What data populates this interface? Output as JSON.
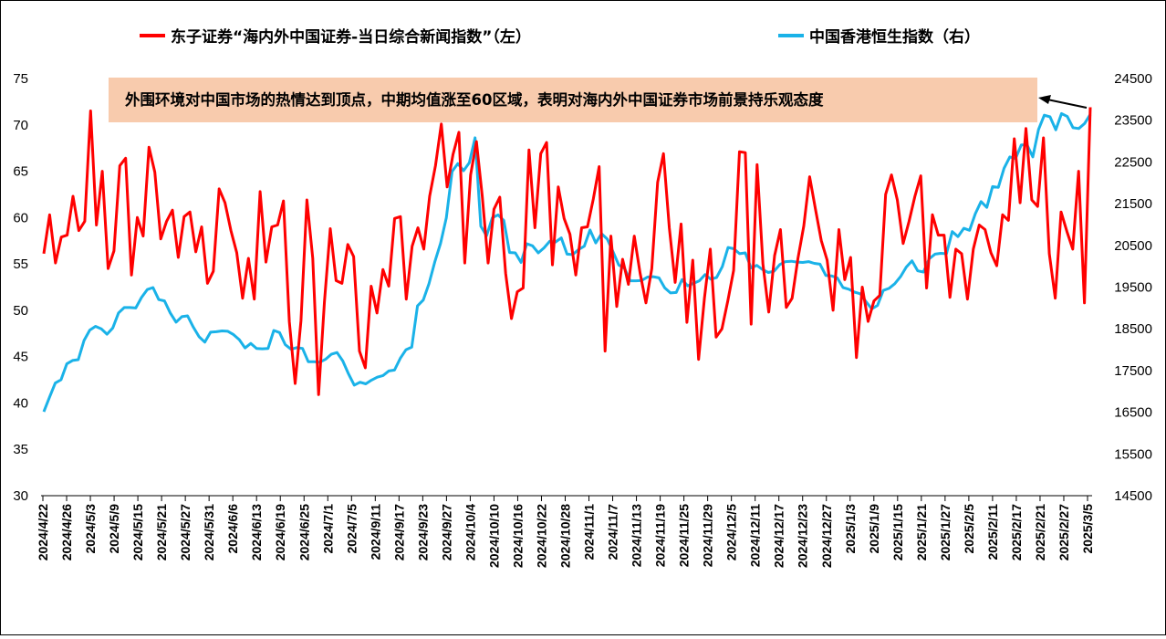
{
  "chart_data": {
    "type": "line",
    "title": "",
    "x_labels": [
      "2024/4/22",
      "2024/4/26",
      "2024/5/3",
      "2024/5/9",
      "2024/5/15",
      "2024/5/21",
      "2024/5/27",
      "2024/5/31",
      "2024/6/6",
      "2024/6/13",
      "2024/6/19",
      "2024/6/25",
      "2024/7/1",
      "2024/7/5",
      "2024/9/11",
      "2024/9/17",
      "2024/9/23",
      "2024/9/27",
      "2024/10/4",
      "2024/10/10",
      "2024/10/16",
      "2024/10/22",
      "2024/10/28",
      "2024/11/1",
      "2024/11/7",
      "2024/11/13",
      "2024/11/19",
      "2024/11/25",
      "2024/11/29",
      "2024/12/5",
      "2024/12/11",
      "2024/12/17",
      "2024/12/23",
      "2024/12/27",
      "2025/1/3",
      "2025/1/9",
      "2025/1/15",
      "2025/1/21",
      "2025/1/27",
      "2025/2/5",
      "2025/2/11",
      "2025/2/17",
      "2025/2/21",
      "2025/2/27",
      "2025/3/5"
    ],
    "left_axis": {
      "ylim": [
        30,
        75
      ],
      "ticks": [
        "30",
        "35",
        "40",
        "45",
        "50",
        "55",
        "60",
        "65",
        "70",
        "75"
      ]
    },
    "right_axis": {
      "ylim": [
        14500,
        24500
      ],
      "ticks": [
        "14500",
        "15500",
        "16500",
        "17500",
        "18500",
        "19500",
        "20500",
        "21500",
        "22500",
        "23500",
        "24500"
      ]
    },
    "series": [
      {
        "name": "东子证券“海内外中国证券-当日综合新闻指数”（左）",
        "axis": "left",
        "color": "#ff0000",
        "values": [
          56.1,
          60.3,
          55.1,
          57.9,
          58.1,
          62.3,
          58.6,
          59.6,
          71.5,
          59.2,
          65.0,
          54.5,
          56.4,
          65.6,
          66.4,
          53.8,
          60.0,
          58.0,
          67.6,
          64.9,
          57.7,
          59.6,
          60.8,
          55.7,
          60.1,
          60.6,
          56.3,
          59.0,
          52.9,
          54.2,
          63.1,
          61.6,
          58.6,
          56.2,
          51.3,
          55.6,
          51.2,
          62.8,
          55.2,
          59.0,
          59.2,
          61.8,
          48.8,
          42.1,
          48.9,
          61.9,
          55.6,
          40.9,
          50.9,
          58.8,
          53.2,
          52.9,
          57.1,
          55.8,
          45.6,
          43.8,
          52.6,
          49.7,
          54.4,
          52.6,
          59.9,
          60.1,
          51.2,
          56.9,
          58.9,
          56.6,
          62.3,
          65.6,
          70.1,
          63.3,
          66.8,
          69.2,
          55.1,
          64.6,
          68.2,
          62.3,
          55.1,
          60.9,
          62.2,
          54.0,
          49.1,
          52.0,
          52.4,
          67.3,
          58.9,
          66.9,
          68.1,
          54.9,
          63.3,
          59.9,
          58.2,
          53.8,
          58.9,
          59.0,
          62.0,
          65.5,
          45.6,
          58.0,
          50.4,
          55.5,
          52.8,
          58.0,
          54.0,
          50.8,
          54.5,
          63.8,
          66.9,
          58.9,
          53.0,
          59.3,
          48.7,
          55.4,
          44.7,
          51.3,
          56.6,
          47.1,
          48.0,
          51.0,
          54.3,
          67.1,
          67.0,
          48.5,
          65.7,
          55.0,
          49.8,
          55.9,
          58.7,
          50.3,
          51.3,
          55.6,
          59.1,
          64.4,
          60.9,
          57.5,
          55.4,
          50.0,
          58.7,
          53.3,
          55.7,
          44.9,
          52.5,
          48.8,
          51.0,
          51.6,
          62.5,
          64.6,
          61.9,
          57.2,
          59.6,
          62.3,
          64.5,
          52.4,
          60.3,
          58.1,
          58.1,
          51.4,
          56.6,
          56.1,
          51.2,
          56.6,
          59.2,
          58.7,
          56.2,
          54.8,
          60.3,
          59.7,
          68.5,
          61.6,
          69.6,
          61.9,
          61.2,
          68.6,
          56.1,
          51.3,
          60.6,
          58.5,
          56.6,
          65.0,
          50.8,
          71.9
        ]
      },
      {
        "name": "中国香港恒生指数（右）",
        "axis": "right",
        "color": "#1ab2e8",
        "values": [
          16510,
          16860,
          17200,
          17280,
          17660,
          17740,
          17760,
          18220,
          18470,
          18560,
          18500,
          18370,
          18520,
          18880,
          19010,
          19010,
          19000,
          19250,
          19440,
          19490,
          19200,
          19170,
          18880,
          18660,
          18790,
          18810,
          18540,
          18310,
          18180,
          18420,
          18430,
          18450,
          18440,
          18360,
          18240,
          18040,
          18150,
          18030,
          18020,
          18030,
          18460,
          18410,
          18120,
          18010,
          18050,
          18030,
          17710,
          17710,
          17700,
          17770,
          17890,
          17930,
          17730,
          17420,
          17150,
          17220,
          17180,
          17270,
          17340,
          17380,
          17490,
          17510,
          17790,
          18000,
          18060,
          19050,
          19190,
          19580,
          20100,
          20550,
          21160,
          22270,
          22460,
          22290,
          22480,
          23080,
          20960,
          20730,
          21160,
          21230,
          21100,
          20330,
          20320,
          20090,
          20540,
          20490,
          20320,
          20440,
          20600,
          20580,
          20680,
          20290,
          20280,
          20400,
          20480,
          20870,
          20560,
          20780,
          20650,
          20350,
          20030,
          19950,
          19650,
          19650,
          19660,
          19740,
          19750,
          19720,
          19480,
          19360,
          19370,
          19680,
          19530,
          19590,
          19650,
          19800,
          19690,
          19730,
          19990,
          20450,
          20420,
          20300,
          20320,
          19960,
          20020,
          19920,
          19850,
          19880,
          20040,
          20110,
          20120,
          20100,
          20090,
          20110,
          20070,
          20050,
          19780,
          19770,
          19720,
          19490,
          19450,
          19380,
          19340,
          19150,
          18980,
          19060,
          19420,
          19470,
          19580,
          19750,
          19980,
          20130,
          19890,
          19860,
          20180,
          20290,
          20310,
          20300,
          20830,
          20710,
          20910,
          20860,
          21260,
          21550,
          21410,
          21910,
          21890,
          22350,
          22620,
          22580,
          22910,
          22910,
          22620,
          23280,
          23620,
          23580,
          23270,
          23660,
          23590,
          23320,
          23300,
          23420,
          23640
        ]
      }
    ],
    "annotation": "外围环境对中国市场的热情达到顶点，中期均值涨至60区域，表明对海内外中国证券市场前景持乐观态度",
    "legend_position": "top",
    "grid": false,
    "colors": {
      "annotation_bg": "#f8cbad",
      "red": "#ff0000",
      "blue": "#1ab2e8"
    }
  }
}
